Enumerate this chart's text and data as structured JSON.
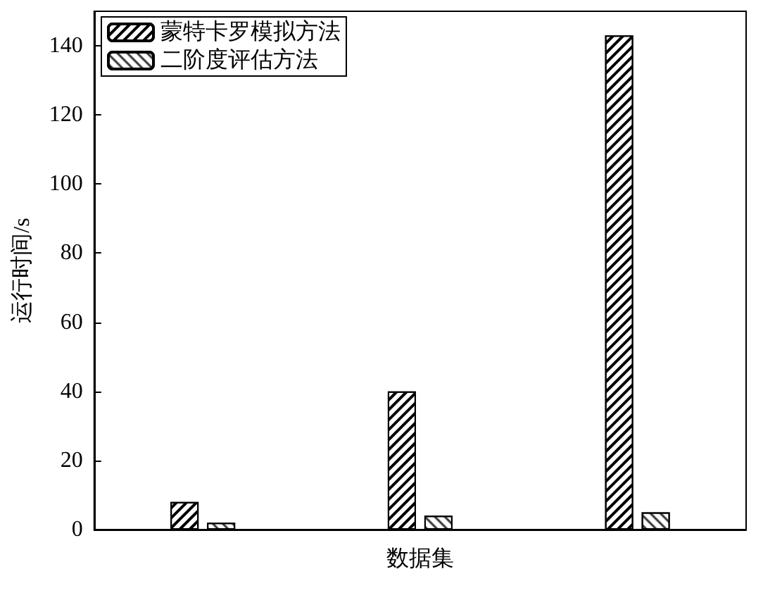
{
  "chart_data": {
    "type": "bar",
    "xlabel": "数据集",
    "ylabel": "运行时间/s",
    "categories": [
      null,
      null,
      null
    ],
    "series": [
      {
        "name": "蒙特卡罗模拟方法",
        "color": "#ffffff",
        "values": [
          8,
          40,
          143
        ]
      },
      {
        "name": "二阶度评估方法",
        "color": "#ffffff",
        "values": [
          2,
          4,
          5
        ]
      }
    ],
    "ylim": [
      0,
      150
    ],
    "yticks": [
      0,
      20,
      40,
      60,
      80,
      100,
      120,
      140
    ],
    "grid": false,
    "legend": "top left"
  }
}
